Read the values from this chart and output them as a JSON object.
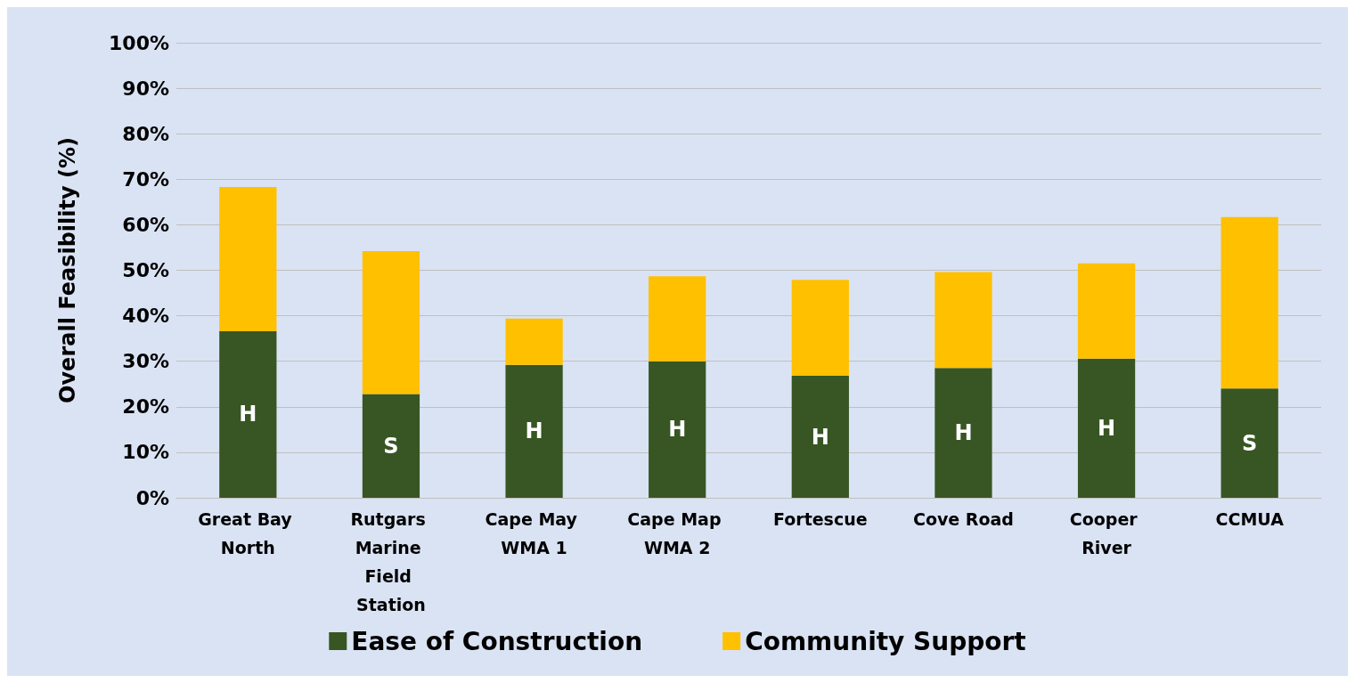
{
  "chart_data": {
    "type": "bar",
    "stacked": true,
    "ylabel": "Overall Feasibility (%)",
    "categories": [
      "Great Bay North",
      "Rutgars Marine Field Station",
      "Cape May WMA 1",
      "Cape Map WMA 2",
      "Fortescue",
      "Cove Road",
      "Cooper River",
      "CCMUA"
    ],
    "series": [
      {
        "name": "Ease of Construction",
        "color": "#375623",
        "values": [
          36.6,
          22.8,
          29.2,
          30.0,
          26.8,
          28.5,
          30.6,
          24.0
        ],
        "value_labels": [
          "H",
          "S",
          "H",
          "H",
          "H",
          "H",
          "H",
          "S"
        ]
      },
      {
        "name": "Community Support",
        "color": "#ffc000",
        "values": [
          31.7,
          31.4,
          10.2,
          18.7,
          21.1,
          21.1,
          20.9,
          37.7
        ]
      }
    ],
    "ylim": [
      0,
      100
    ],
    "yticks": [
      {
        "value": 0,
        "label": "0%"
      },
      {
        "value": 10,
        "label": "10%"
      },
      {
        "value": 20,
        "label": "20%"
      },
      {
        "value": 30,
        "label": "30%"
      },
      {
        "value": 40,
        "label": "40%"
      },
      {
        "value": 50,
        "label": "50%"
      },
      {
        "value": 60,
        "label": "60%"
      },
      {
        "value": 70,
        "label": "70%"
      },
      {
        "value": 80,
        "label": "80%"
      },
      {
        "value": 90,
        "label": "90%"
      },
      {
        "value": 100,
        "label": "100%"
      }
    ],
    "grid": "y",
    "legend": "bottom"
  }
}
